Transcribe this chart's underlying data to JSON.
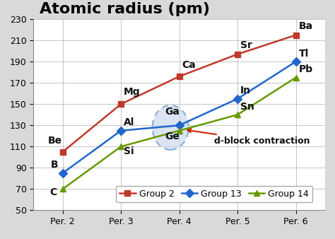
{
  "title": "Atomic radius (pm)",
  "x_labels": [
    "Per. 2",
    "Per. 3",
    "Per. 4",
    "Per. 5",
    "Per. 6"
  ],
  "x_values": [
    1,
    2,
    3,
    4,
    5
  ],
  "group2": {
    "values": [
      105,
      150,
      176,
      197,
      215
    ],
    "labels": [
      "Be",
      "Mg",
      "Ca",
      "Sr",
      "Ba"
    ],
    "color": "#c0392b",
    "marker": "s",
    "label": "Group 2"
  },
  "group13": {
    "values": [
      85,
      125,
      130,
      155,
      190
    ],
    "labels": [
      "B",
      "Al",
      "Ga",
      "In",
      "Tl"
    ],
    "color": "#2266cc",
    "marker": "D",
    "label": "Group 13"
  },
  "group14": {
    "values": [
      70,
      110,
      125,
      140,
      175
    ],
    "labels": [
      "C",
      "Si",
      "Ge",
      "Sn",
      "Pb"
    ],
    "color": "#669900",
    "marker": "^",
    "label": "Group 14"
  },
  "ylim": [
    50,
    230
  ],
  "yticks": [
    50,
    70,
    90,
    110,
    130,
    150,
    170,
    190,
    210,
    230
  ],
  "bg_color": "#d9d9d9",
  "plot_bg_color": "#ffffff",
  "ellipse_color": "#6699cc",
  "ellipse_face": "#ccd9ee",
  "arrow_color": "#cc2200",
  "annotation_text": "d-block contraction",
  "title_fontsize": 16,
  "legend_fontsize": 9,
  "label_fontsize": 10,
  "tick_fontsize": 9
}
